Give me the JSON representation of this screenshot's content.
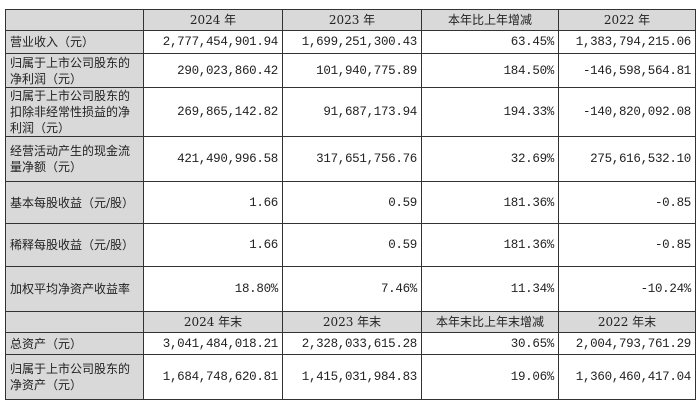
{
  "header1": [
    "",
    "2024 年",
    "2023 年",
    "本年比上年增减",
    "2022 年"
  ],
  "rows1": [
    {
      "label": "营业收入（元）",
      "values": [
        "2,777,454,901.94",
        "1,699,251,300.43",
        "63.45%",
        "1,383,794,215.06"
      ]
    },
    {
      "label": "归属于上市公司股东的净利润（元）",
      "values": [
        "290,023,860.42",
        "101,940,775.89",
        "184.50%",
        "-146,598,564.81"
      ]
    },
    {
      "label": "归属于上市公司股东的扣除非经常性损益的净利润（元）",
      "values": [
        "269,865,142.82",
        "91,687,173.94",
        "194.33%",
        "-140,820,092.08"
      ]
    },
    {
      "label": "经营活动产生的现金流量净额（元）",
      "values": [
        "421,490,996.58",
        "317,651,756.76",
        "32.69%",
        "275,616,532.10"
      ]
    },
    {
      "label": "基本每股收益（元/股）",
      "values": [
        "1.66",
        "0.59",
        "181.36%",
        "-0.85"
      ]
    },
    {
      "label": "稀释每股收益（元/股）",
      "values": [
        "1.66",
        "0.59",
        "181.36%",
        "-0.85"
      ]
    },
    {
      "label": "加权平均净资产收益率",
      "values": [
        "18.80%",
        "7.46%",
        "11.34%",
        "-10.24%"
      ]
    }
  ],
  "header2": [
    "",
    "2024 年末",
    "2023 年末",
    "本年末比上年末增减",
    "2022 年末"
  ],
  "rows2": [
    {
      "label": "总资产（元）",
      "values": [
        "3,041,484,018.21",
        "2,328,033,615.28",
        "30.65%",
        "2,004,793,761.29"
      ]
    },
    {
      "label": "归属于上市公司股东的净资产（元）",
      "values": [
        "1,684,748,620.81",
        "1,415,031,984.83",
        "19.06%",
        "1,360,460,417.04"
      ]
    }
  ]
}
